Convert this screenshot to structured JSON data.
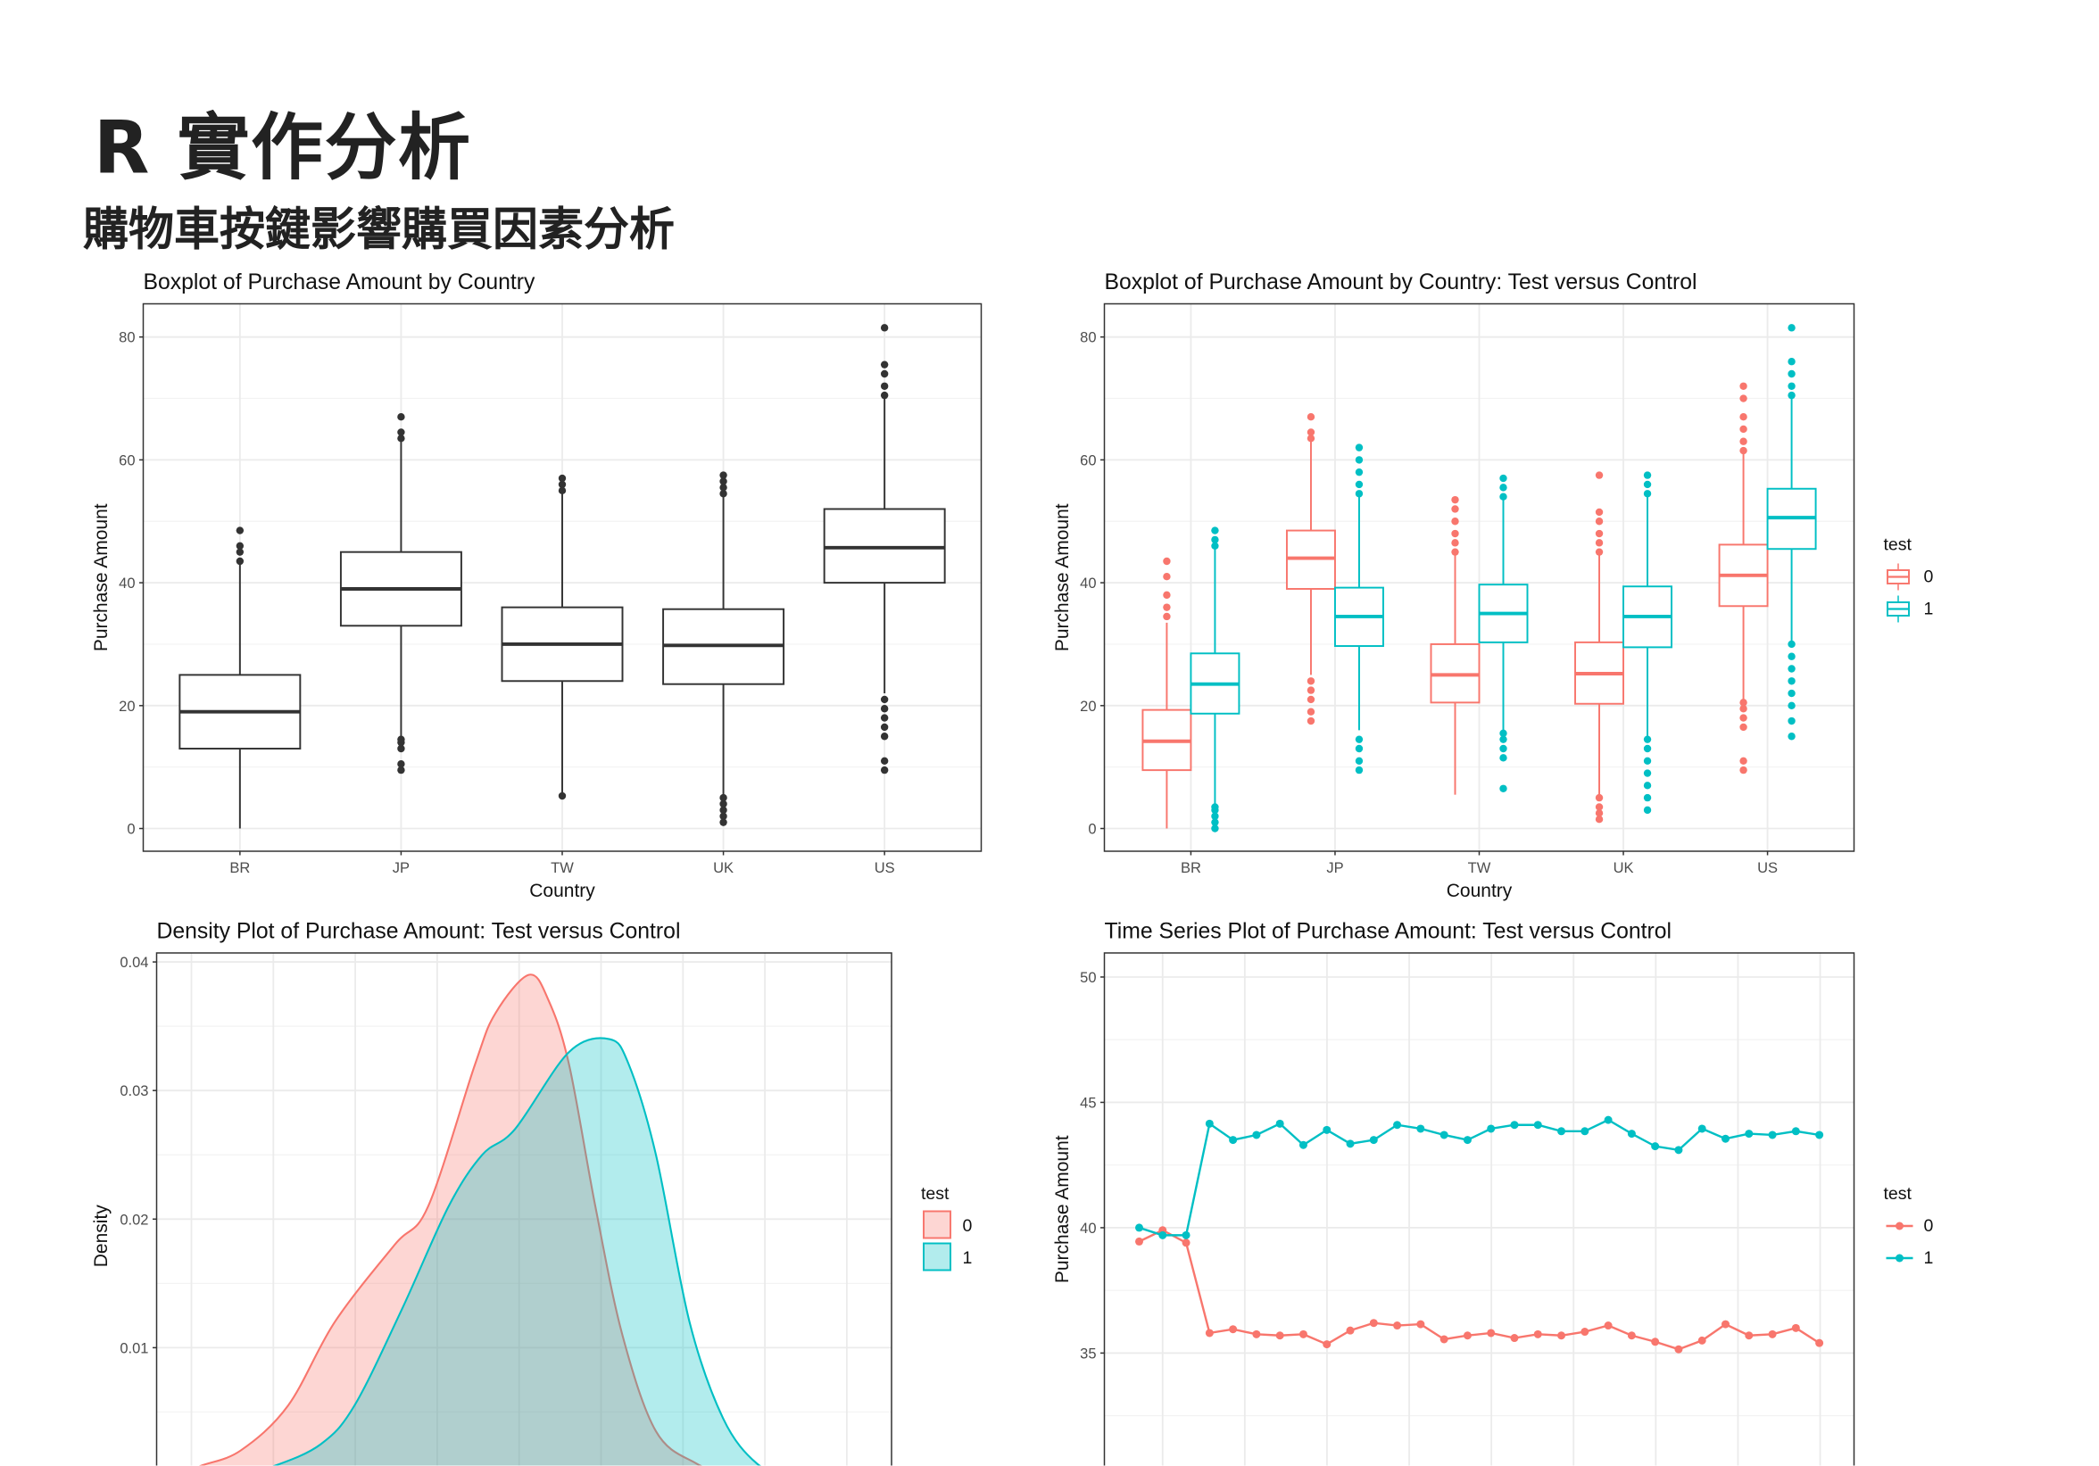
{
  "header": {
    "title": "R 實作分析",
    "subtitle": "購物車按鍵影響購買因素分析"
  },
  "colors": {
    "control": "#F8766D",
    "test": "#00BFC4",
    "box": "#333333"
  },
  "chart_data": [
    {
      "type": "boxplot",
      "title": "Boxplot of Purchase Amount by Country",
      "xlabel": "Country",
      "ylabel": "Purchase Amount",
      "categories": [
        "BR",
        "JP",
        "TW",
        "UK",
        "US"
      ],
      "ylim": [
        -3.7,
        85.4
      ],
      "yticks": [
        0,
        20,
        40,
        60,
        80
      ],
      "grid": true,
      "boxes": [
        {
          "lower": 0,
          "q1": 13,
          "median": 19,
          "q3": 25,
          "upper": 43,
          "outliers": [
            43.5,
            45,
            46,
            48.5
          ]
        },
        {
          "lower": 15,
          "q1": 33,
          "median": 39,
          "q3": 45,
          "upper": 63,
          "outliers": [
            9.5,
            10.5,
            13,
            14,
            14.5,
            63.5,
            64.5,
            67
          ]
        },
        {
          "lower": 5.5,
          "q1": 24,
          "median": 30,
          "q3": 36,
          "upper": 54.5,
          "outliers": [
            5.3,
            55,
            56,
            57
          ]
        },
        {
          "lower": 5.5,
          "q1": 23.5,
          "median": 29.8,
          "q3": 35.7,
          "upper": 54,
          "outliers": [
            1,
            2,
            3,
            4,
            5,
            54.5,
            55.5,
            56.5,
            57.5
          ]
        },
        {
          "lower": 22,
          "q1": 40,
          "median": 45.7,
          "q3": 52,
          "upper": 70,
          "outliers": [
            9.5,
            11,
            15,
            16.5,
            18,
            19.5,
            21,
            70.5,
            72,
            74,
            75.5,
            81.5
          ]
        }
      ]
    },
    {
      "type": "boxplot",
      "title": "Boxplot of Purchase Amount by Country: Test versus Control",
      "xlabel": "Country",
      "ylabel": "Purchase Amount",
      "categories": [
        "BR",
        "JP",
        "TW",
        "UK",
        "US"
      ],
      "ylim": [
        -3.7,
        85.4
      ],
      "yticks": [
        0,
        20,
        40,
        60,
        80
      ],
      "grid": true,
      "legend": {
        "title": "test",
        "entries": [
          "0",
          "1"
        ],
        "position": "right"
      },
      "series": [
        {
          "name": "0",
          "boxes": [
            {
              "lower": 0,
              "q1": 9.5,
              "median": 14.2,
              "q3": 19.3,
              "upper": 33.5,
              "outliers": [
                34.5,
                36,
                38,
                41,
                43.5
              ]
            },
            {
              "lower": 25,
              "q1": 39,
              "median": 44,
              "q3": 48.5,
              "upper": 63,
              "outliers": [
                17.5,
                19,
                21,
                22.5,
                24,
                63.5,
                64.5,
                67
              ]
            },
            {
              "lower": 5.5,
              "q1": 20.5,
              "median": 25,
              "q3": 30,
              "upper": 44.5,
              "outliers": [
                45,
                46.5,
                48,
                50,
                52,
                53.5
              ]
            },
            {
              "lower": 5.5,
              "q1": 20.3,
              "median": 25.2,
              "q3": 30.3,
              "upper": 44.5,
              "outliers": [
                1.5,
                2.5,
                3.5,
                5,
                45,
                46.5,
                48,
                50,
                51.5,
                57.5
              ]
            },
            {
              "lower": 21,
              "q1": 36.2,
              "median": 41.2,
              "q3": 46.2,
              "upper": 61,
              "outliers": [
                9.5,
                11,
                16.5,
                18,
                19.5,
                20.5,
                61.5,
                63,
                65,
                67,
                70,
                72
              ]
            }
          ]
        },
        {
          "name": "1",
          "boxes": [
            {
              "lower": 4,
              "q1": 18.7,
              "median": 23.5,
              "q3": 28.5,
              "upper": 45.5,
              "outliers": [
                0,
                1,
                2,
                3,
                3.5,
                46,
                47,
                48.5
              ]
            },
            {
              "lower": 16,
              "q1": 29.7,
              "median": 34.5,
              "q3": 39.2,
              "upper": 54,
              "outliers": [
                9.5,
                11,
                13,
                14.5,
                54.5,
                56,
                58,
                60,
                62
              ]
            },
            {
              "lower": 16,
              "q1": 30.3,
              "median": 35,
              "q3": 39.7,
              "upper": 53.5,
              "outliers": [
                6.5,
                11.5,
                13,
                14.5,
                15.5,
                54,
                55.5,
                57
              ]
            },
            {
              "lower": 15,
              "q1": 29.5,
              "median": 34.5,
              "q3": 39.4,
              "upper": 54,
              "outliers": [
                3,
                5,
                7,
                9,
                11,
                13,
                14.5,
                54.5,
                56,
                57.5
              ]
            },
            {
              "lower": 30,
              "q1": 45.5,
              "median": 50.6,
              "q3": 55.3,
              "upper": 70,
              "outliers": [
                15,
                17.5,
                20,
                22,
                24,
                26,
                28,
                30,
                70.5,
                72,
                74,
                76,
                81.5
              ]
            }
          ]
        }
      ]
    },
    {
      "type": "area",
      "title": "Density Plot of Purchase Amount: Test versus Control",
      "ylabel": "Density",
      "ylim": [
        0,
        0.0407
      ],
      "yticks": [
        0.01,
        0.02,
        0.03,
        0.04
      ],
      "ytick_labels": [
        "0.01",
        "0.02",
        "0.03",
        "0.04"
      ],
      "grid": true,
      "legend": {
        "title": "test",
        "entries": [
          "0",
          "1"
        ],
        "position": "right"
      },
      "series": [
        {
          "name": "0",
          "x": [
            -2,
            1.1,
            6,
            11.8,
            17.5,
            24.8,
            28.9,
            34.6,
            37.1,
            41.2,
            43.6,
            46.1,
            49.3,
            52.6,
            56.7,
            61.6,
            66
          ],
          "y": [
            0,
            0.0008,
            0.002,
            0.0055,
            0.012,
            0.018,
            0.021,
            0.032,
            0.036,
            0.039,
            0.037,
            0.032,
            0.021,
            0.011,
            0.0035,
            0.001,
            0
          ]
        },
        {
          "name": "1",
          "x": [
            5,
            10.1,
            15.8,
            19.9,
            25.7,
            31.4,
            35.5,
            39.5,
            46.1,
            51,
            53.4,
            56.7,
            60.8,
            64.9,
            69,
            73
          ],
          "y": [
            0,
            0.0008,
            0.0025,
            0.0055,
            0.013,
            0.021,
            0.025,
            0.027,
            0.033,
            0.034,
            0.032,
            0.025,
            0.012,
            0.0045,
            0.001,
            0
          ]
        }
      ]
    },
    {
      "type": "line",
      "title": "Time Series Plot of Purchase Amount: Test versus Control",
      "ylabel": "Purchase Amount",
      "ylim": [
        30,
        50.96
      ],
      "yticks": [
        35,
        40,
        45,
        50
      ],
      "grid": true,
      "legend": {
        "title": "test",
        "entries": [
          "0",
          "1"
        ],
        "position": "right"
      },
      "series": [
        {
          "name": "0",
          "values": [
            39.45,
            39.9,
            39.4,
            35.8,
            35.95,
            35.75,
            35.7,
            35.75,
            35.35,
            35.9,
            36.2,
            36.1,
            36.15,
            35.55,
            35.7,
            35.8,
            35.6,
            35.75,
            35.7,
            35.85,
            36.1,
            35.7,
            35.45,
            35.15,
            35.5,
            36.15,
            35.7,
            35.75,
            36.0,
            35.4
          ]
        },
        {
          "name": "1",
          "values": [
            40.0,
            39.7,
            39.7,
            44.15,
            43.5,
            43.7,
            44.15,
            43.3,
            43.9,
            43.35,
            43.5,
            44.1,
            43.95,
            43.7,
            43.5,
            43.95,
            44.1,
            44.1,
            43.85,
            43.85,
            44.3,
            43.75,
            43.25,
            43.1,
            43.95,
            43.55,
            43.75,
            43.7,
            43.85,
            43.7
          ]
        }
      ]
    }
  ]
}
